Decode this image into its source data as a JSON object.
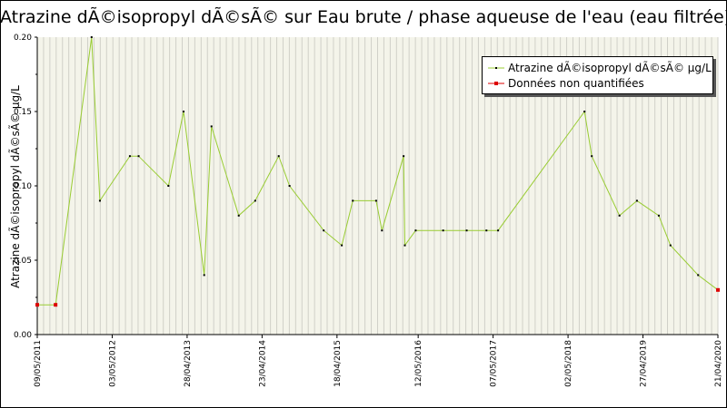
{
  "title": "Atrazine dÃ©isopropyl dÃ©sÃ© sur Eau brute / phase aqueuse de l'eau (eau filtrée)",
  "colors": {
    "series_line": "#99cc33",
    "series_marker": "#000000",
    "unquantified_marker": "#dd0000",
    "grid": "#d0d0c8",
    "plot_bg": "#f4f4ea"
  },
  "chart_data": {
    "type": "line",
    "title": "Atrazine dÃ©isopropyl dÃ©sÃ© sur Eau brute / phase aqueuse de l'eau (eau filtrée)",
    "xlabel": "",
    "ylabel": "Atrazine dÃ©isopropyl dÃ©sÃ© µg/L",
    "x_type": "date",
    "xlim": [
      "2011-05-09",
      "2020-04-21"
    ],
    "ylim": [
      0,
      0.2
    ],
    "y_ticks": [
      "0.00",
      "0.05",
      "0.10",
      "0.15",
      "0.20"
    ],
    "y_tick_values": [
      0,
      0.05,
      0.1,
      0.15,
      0.2
    ],
    "x_tick_labels": [
      "09/05/2011",
      "03/05/2012",
      "28/04/2013",
      "23/04/2014",
      "18/04/2015",
      "12/05/2016",
      "07/05/2017",
      "02/05/2018",
      "27/04/2019",
      "21/04/2020"
    ],
    "x_tick_dates": [
      "2011-05-09",
      "2012-05-03",
      "2013-04-28",
      "2014-04-23",
      "2015-04-18",
      "2016-05-12",
      "2017-05-07",
      "2018-05-02",
      "2019-04-27",
      "2020-04-21"
    ],
    "grid": true,
    "legend_position": "top-right",
    "series": [
      {
        "name": "Atrazine dÃ©isopropyl dÃ©sÃ© µg/L",
        "points": [
          {
            "x": "2011-05-09",
            "y": 0.02,
            "quantified": false
          },
          {
            "x": "2011-08-05",
            "y": 0.02,
            "quantified": false
          },
          {
            "x": "2012-01-25",
            "y": 0.2,
            "quantified": true
          },
          {
            "x": "2012-03-05",
            "y": 0.09,
            "quantified": true
          },
          {
            "x": "2012-07-27",
            "y": 0.12,
            "quantified": true
          },
          {
            "x": "2012-09-07",
            "y": 0.12,
            "quantified": true
          },
          {
            "x": "2013-01-28",
            "y": 0.1,
            "quantified": true
          },
          {
            "x": "2013-04-11",
            "y": 0.15,
            "quantified": true
          },
          {
            "x": "2013-07-19",
            "y": 0.04,
            "quantified": true
          },
          {
            "x": "2013-08-23",
            "y": 0.14,
            "quantified": true
          },
          {
            "x": "2014-01-01",
            "y": 0.08,
            "quantified": true
          },
          {
            "x": "2014-03-21",
            "y": 0.09,
            "quantified": true
          },
          {
            "x": "2014-07-12",
            "y": 0.12,
            "quantified": true
          },
          {
            "x": "2014-09-02",
            "y": 0.1,
            "quantified": true
          },
          {
            "x": "2015-02-13",
            "y": 0.07,
            "quantified": true
          },
          {
            "x": "2015-05-11",
            "y": 0.06,
            "quantified": true
          },
          {
            "x": "2015-07-03",
            "y": 0.09,
            "quantified": true
          },
          {
            "x": "2015-10-23",
            "y": 0.09,
            "quantified": true
          },
          {
            "x": "2015-11-20",
            "y": 0.07,
            "quantified": true
          },
          {
            "x": "2016-03-03",
            "y": 0.12,
            "quantified": true
          },
          {
            "x": "2016-03-09",
            "y": 0.06,
            "quantified": true
          },
          {
            "x": "2016-04-30",
            "y": 0.07,
            "quantified": true
          },
          {
            "x": "2016-09-09",
            "y": 0.07,
            "quantified": true
          },
          {
            "x": "2016-12-31",
            "y": 0.07,
            "quantified": true
          },
          {
            "x": "2017-04-05",
            "y": 0.07,
            "quantified": true
          },
          {
            "x": "2017-05-31",
            "y": 0.07,
            "quantified": true
          },
          {
            "x": "2018-07-20",
            "y": 0.15,
            "quantified": true
          },
          {
            "x": "2018-08-24",
            "y": 0.12,
            "quantified": true
          },
          {
            "x": "2019-01-04",
            "y": 0.08,
            "quantified": true
          },
          {
            "x": "2019-03-29",
            "y": 0.09,
            "quantified": true
          },
          {
            "x": "2019-07-12",
            "y": 0.08,
            "quantified": true
          },
          {
            "x": "2019-09-06",
            "y": 0.06,
            "quantified": true
          },
          {
            "x": "2020-01-17",
            "y": 0.04,
            "quantified": true
          },
          {
            "x": "2020-04-21",
            "y": 0.03,
            "quantified": false
          }
        ]
      }
    ]
  },
  "legend": {
    "series_label": "Atrazine dÃ©isopropyl dÃ©sÃ© µg/L",
    "unquantified_label": "Données non quantifiées"
  }
}
